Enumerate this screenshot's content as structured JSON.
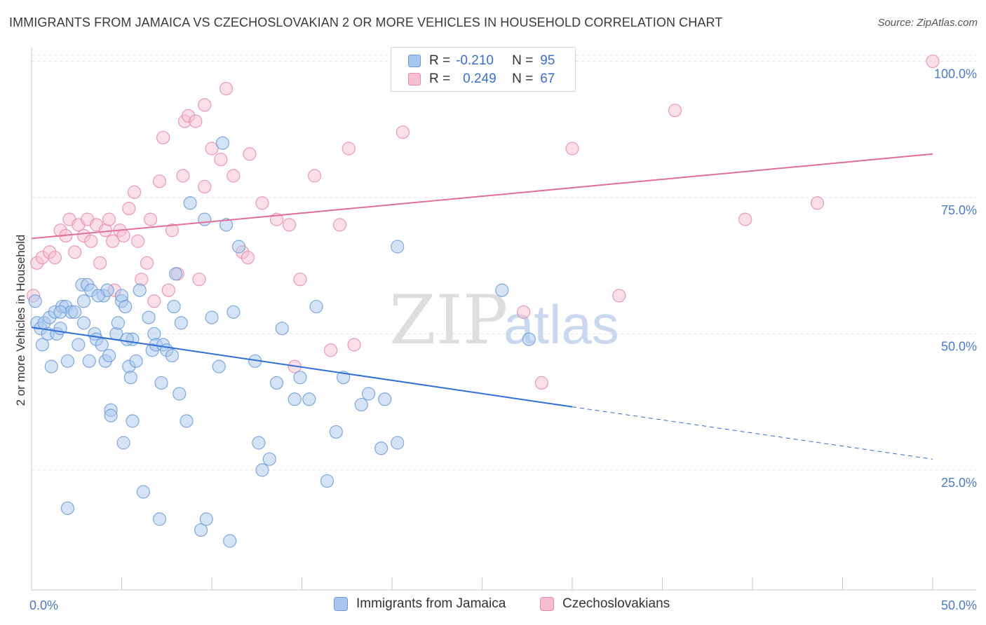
{
  "header": {
    "title": "IMMIGRANTS FROM JAMAICA VS CZECHOSLOVAKIAN 2 OR MORE VEHICLES IN HOUSEHOLD CORRELATION CHART",
    "source": "Source: ZipAtlas.com"
  },
  "legend": {
    "rows": [
      {
        "r_label": "R =",
        "r_value": "-0.210",
        "n_label": "N =",
        "n_value": "95"
      },
      {
        "r_label": "R =",
        "r_value": "0.249",
        "n_label": "N =",
        "n_value": "67"
      }
    ]
  },
  "watermark": {
    "zip": "ZIP",
    "atlas": "atlas"
  },
  "colors": {
    "blue_fill": "#a9c7ee",
    "blue_stroke": "#6b9bd8",
    "blue_line": "#2f6fd6",
    "pink_fill": "#f5bfd0",
    "pink_stroke": "#e98aa8",
    "pink_line": "#e0709a",
    "tick_text": "#4a7bc8",
    "grid": "#e3e3e3"
  },
  "chart_data": {
    "type": "scatter",
    "title": "IMMIGRANTS FROM JAMAICA VS CZECHOSLOVAKIAN 2 OR MORE VEHICLES IN HOUSEHOLD CORRELATION CHART",
    "xlabel": "",
    "ylabel": "2 or more Vehicles in Household",
    "xlim": [
      0,
      50
    ],
    "ylim": [
      3,
      102
    ],
    "x_tick_labels": [
      "0.0%",
      "50.0%"
    ],
    "y_ticks": [
      25,
      50,
      75,
      100
    ],
    "y_tick_labels": [
      "25.0%",
      "50.0%",
      "75.0%",
      "100.0%"
    ],
    "grid": true,
    "legend_position": "bottom",
    "series": [
      {
        "name": "Immigrants from Jamaica",
        "color": "#a9c7ee",
        "trend": {
          "x0": 0,
          "y0": 51.2,
          "x1": 30,
          "y1": 36.6,
          "dashed_to_x": 50,
          "dashed_to_y": 27.0
        },
        "points": [
          [
            0.2,
            56
          ],
          [
            0.3,
            52
          ],
          [
            0.5,
            51
          ],
          [
            0.6,
            48
          ],
          [
            0.7,
            52
          ],
          [
            0.9,
            50
          ],
          [
            1.0,
            53
          ],
          [
            1.1,
            44
          ],
          [
            1.3,
            54
          ],
          [
            1.4,
            50
          ],
          [
            1.6,
            51
          ],
          [
            1.7,
            55
          ],
          [
            1.9,
            55
          ],
          [
            2.0,
            45
          ],
          [
            2.2,
            54
          ],
          [
            2.4,
            54
          ],
          [
            2.6,
            48
          ],
          [
            2.8,
            59
          ],
          [
            3.1,
            59
          ],
          [
            2.9,
            52
          ],
          [
            3.2,
            45
          ],
          [
            3.3,
            58
          ],
          [
            3.5,
            50
          ],
          [
            3.6,
            49
          ],
          [
            3.9,
            48
          ],
          [
            4.0,
            57
          ],
          [
            4.1,
            45
          ],
          [
            4.2,
            58
          ],
          [
            4.3,
            46
          ],
          [
            4.4,
            36
          ],
          [
            4.4,
            35
          ],
          [
            4.7,
            50
          ],
          [
            4.8,
            52
          ],
          [
            5.0,
            56
          ],
          [
            5.0,
            57
          ],
          [
            5.2,
            55
          ],
          [
            5.4,
            44
          ],
          [
            5.6,
            49
          ],
          [
            5.8,
            45
          ],
          [
            6.0,
            58
          ],
          [
            6.5,
            53
          ],
          [
            6.7,
            47
          ],
          [
            6.8,
            50
          ],
          [
            6.9,
            48
          ],
          [
            7.3,
            48
          ],
          [
            7.5,
            47
          ],
          [
            7.8,
            46
          ],
          [
            7.2,
            41
          ],
          [
            8.0,
            61
          ],
          [
            8.2,
            39
          ],
          [
            8.3,
            52
          ],
          [
            8.6,
            34
          ],
          [
            8.8,
            74
          ],
          [
            9.6,
            71
          ],
          [
            9.4,
            14
          ],
          [
            9.7,
            16
          ],
          [
            10.0,
            53
          ],
          [
            10.4,
            44
          ],
          [
            10.6,
            85
          ],
          [
            10.8,
            70
          ],
          [
            11.0,
            12
          ],
          [
            11.2,
            54
          ],
          [
            11.5,
            66
          ],
          [
            12.4,
            45
          ],
          [
            12.6,
            30
          ],
          [
            12.8,
            25
          ],
          [
            13.2,
            27
          ],
          [
            13.6,
            41
          ],
          [
            13.9,
            51
          ],
          [
            14.6,
            38
          ],
          [
            14.9,
            42
          ],
          [
            15.4,
            38
          ],
          [
            15.8,
            55
          ],
          [
            16.4,
            23
          ],
          [
            16.9,
            32
          ],
          [
            17.3,
            42
          ],
          [
            18.3,
            37
          ],
          [
            18.7,
            39
          ],
          [
            19.4,
            29
          ],
          [
            19.6,
            38
          ],
          [
            20.3,
            30
          ],
          [
            20.3,
            66
          ],
          [
            26.1,
            58
          ],
          [
            27.6,
            49
          ],
          [
            5.1,
            30
          ],
          [
            5.6,
            34
          ],
          [
            5.5,
            42
          ],
          [
            6.2,
            21
          ],
          [
            7.1,
            16
          ],
          [
            2.0,
            18
          ],
          [
            1.6,
            54
          ],
          [
            2.9,
            56
          ],
          [
            3.7,
            57
          ],
          [
            5.3,
            49
          ],
          [
            7.9,
            55
          ]
        ]
      },
      {
        "name": "Czechoslovakians",
        "color": "#f5bfd0",
        "trend": {
          "x0": 0,
          "y0": 67.5,
          "x1": 50,
          "y1": 83.0
        },
        "points": [
          [
            0.1,
            57
          ],
          [
            0.3,
            63
          ],
          [
            0.6,
            64
          ],
          [
            1.0,
            65
          ],
          [
            1.3,
            64
          ],
          [
            1.6,
            69
          ],
          [
            1.9,
            68
          ],
          [
            2.1,
            71
          ],
          [
            2.4,
            65
          ],
          [
            2.6,
            70
          ],
          [
            2.9,
            68
          ],
          [
            3.1,
            71
          ],
          [
            3.3,
            67
          ],
          [
            3.6,
            70
          ],
          [
            3.8,
            63
          ],
          [
            4.1,
            69
          ],
          [
            4.3,
            71
          ],
          [
            4.6,
            58
          ],
          [
            4.9,
            69
          ],
          [
            5.1,
            68
          ],
          [
            5.4,
            73
          ],
          [
            5.7,
            76
          ],
          [
            5.9,
            67
          ],
          [
            6.1,
            60
          ],
          [
            6.4,
            63
          ],
          [
            6.6,
            71
          ],
          [
            6.8,
            56
          ],
          [
            7.1,
            78
          ],
          [
            7.3,
            86
          ],
          [
            7.6,
            58
          ],
          [
            7.8,
            69
          ],
          [
            8.1,
            61
          ],
          [
            8.4,
            79
          ],
          [
            8.5,
            89
          ],
          [
            8.7,
            90
          ],
          [
            9.1,
            89
          ],
          [
            9.3,
            60
          ],
          [
            9.6,
            92
          ],
          [
            9.6,
            77
          ],
          [
            10.0,
            84
          ],
          [
            10.5,
            82
          ],
          [
            10.8,
            95
          ],
          [
            11.2,
            79
          ],
          [
            11.7,
            65
          ],
          [
            12.1,
            83
          ],
          [
            12.8,
            74
          ],
          [
            13.6,
            71
          ],
          [
            14.3,
            70
          ],
          [
            14.6,
            44
          ],
          [
            14.9,
            60
          ],
          [
            15.7,
            79
          ],
          [
            16.6,
            47
          ],
          [
            17.1,
            70
          ],
          [
            17.6,
            84
          ],
          [
            17.9,
            48
          ],
          [
            20.6,
            87
          ],
          [
            23.1,
            100
          ],
          [
            27.3,
            54
          ],
          [
            28.3,
            41
          ],
          [
            30.0,
            84
          ],
          [
            32.6,
            57
          ],
          [
            35.7,
            91
          ],
          [
            39.6,
            71
          ],
          [
            43.6,
            74
          ],
          [
            50.0,
            100
          ],
          [
            4.5,
            67
          ],
          [
            12.0,
            64
          ]
        ]
      }
    ]
  },
  "bottom_legend": {
    "items": [
      {
        "label": "Immigrants from Jamaica"
      },
      {
        "label": "Czechoslovakians"
      }
    ]
  }
}
